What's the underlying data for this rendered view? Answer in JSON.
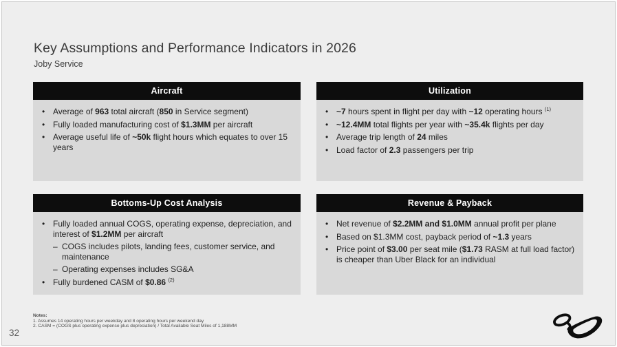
{
  "slide": {
    "title": "Key Assumptions and Performance Indicators in 2026",
    "subtitle": "Joby Service",
    "page_number": "32"
  },
  "colors": {
    "slide_bg": "#eeeeee",
    "box_header_bg": "#0d0d0d",
    "box_header_text": "#ffffff",
    "box_body_bg": "#d9d9d9",
    "body_text": "#1f1f1f",
    "logo": "#0d0d0d"
  },
  "boxes": [
    {
      "id": "aircraft",
      "title": "Aircraft",
      "bullets": [
        {
          "level": 1,
          "segments": [
            {
              "t": "Average of "
            },
            {
              "t": "963",
              "b": true
            },
            {
              "t": " total aircraft ("
            },
            {
              "t": "850",
              "b": true
            },
            {
              "t": " in Service segment)"
            }
          ]
        },
        {
          "level": 1,
          "segments": [
            {
              "t": "Fully loaded manufacturing cost of "
            },
            {
              "t": "$1.3MM",
              "b": true
            },
            {
              "t": " per aircraft"
            }
          ]
        },
        {
          "level": 1,
          "segments": [
            {
              "t": "Average useful life of "
            },
            {
              "t": "~50k",
              "b": true
            },
            {
              "t": " flight hours which equates to over 15 years"
            }
          ]
        }
      ]
    },
    {
      "id": "utilization",
      "title": "Utilization",
      "bullets": [
        {
          "level": 1,
          "segments": [
            {
              "t": "~7",
              "b": true
            },
            {
              "t": " hours spent in flight per day with "
            },
            {
              "t": "~12",
              "b": true
            },
            {
              "t": " operating hours "
            },
            {
              "t": "(1)",
              "sup": true
            }
          ]
        },
        {
          "level": 1,
          "segments": [
            {
              "t": "~12.4MM",
              "b": true
            },
            {
              "t": " total flights per year with "
            },
            {
              "t": "~35.4k",
              "b": true
            },
            {
              "t": " flights per day"
            }
          ]
        },
        {
          "level": 1,
          "segments": [
            {
              "t": "Average trip length of "
            },
            {
              "t": "24",
              "b": true
            },
            {
              "t": " miles"
            }
          ]
        },
        {
          "level": 1,
          "segments": [
            {
              "t": "Load factor of "
            },
            {
              "t": "2.3",
              "b": true
            },
            {
              "t": " passengers per trip"
            }
          ]
        }
      ]
    },
    {
      "id": "bottoms-up-cost-analysis",
      "title": "Bottoms-Up Cost Analysis",
      "bullets": [
        {
          "level": 1,
          "segments": [
            {
              "t": "Fully loaded annual COGS, operating expense, depreciation, and interest of "
            },
            {
              "t": "$1.2MM",
              "b": true
            },
            {
              "t": " per aircraft"
            }
          ]
        },
        {
          "level": 2,
          "segments": [
            {
              "t": "COGS includes pilots, landing fees, customer service, and maintenance"
            }
          ]
        },
        {
          "level": 2,
          "segments": [
            {
              "t": "Operating expenses includes SG&A"
            }
          ]
        },
        {
          "level": 1,
          "segments": [
            {
              "t": "Fully burdened CASM of "
            },
            {
              "t": "$0.86",
              "b": true
            },
            {
              "t": " "
            },
            {
              "t": "(2)",
              "sup": true
            }
          ]
        }
      ]
    },
    {
      "id": "revenue-payback",
      "title": "Revenue & Payback",
      "bullets": [
        {
          "level": 1,
          "segments": [
            {
              "t": "Net revenue of "
            },
            {
              "t": "$2.2MM and $1.0MM",
              "b": true
            },
            {
              "t": " annual profit per plane"
            }
          ]
        },
        {
          "level": 1,
          "segments": [
            {
              "t": "Based on $1.3MM cost, payback period of "
            },
            {
              "t": "~1.3",
              "b": true
            },
            {
              "t": " years"
            }
          ]
        },
        {
          "level": 1,
          "segments": [
            {
              "t": "Price point of "
            },
            {
              "t": "$3.00",
              "b": true
            },
            {
              "t": " per seat mile ("
            },
            {
              "t": "$1.73",
              "b": true
            },
            {
              "t": " RASM at full load factor) is cheaper than Uber Black for an individual"
            }
          ]
        }
      ]
    }
  ],
  "footnotes": {
    "label": "Notes:",
    "items": [
      "1. Assumes 14 operating hours per weekday and 8 operating hours per weekend day",
      "2. CASM = (COGS plus operating expense plus depreciation) / Total Available Seat Miles of 1,188MM"
    ]
  }
}
